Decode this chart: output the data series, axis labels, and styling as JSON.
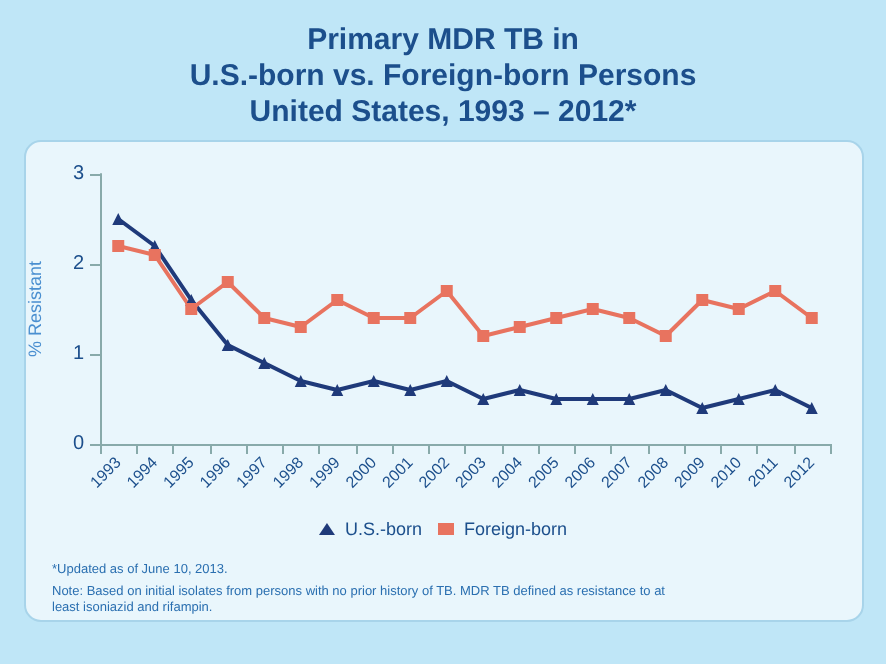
{
  "chart_data": {
    "type": "line",
    "title": "Primary MDR TB in\nU.S.-born vs. Foreign-born Persons\nUnited States, 1993 – 2012*",
    "ylabel": "% Resistant",
    "categories": [
      "1993",
      "1994",
      "1995",
      "1996",
      "1997",
      "1998",
      "1999",
      "2000",
      "2001",
      "2002",
      "2003",
      "2004",
      "2005",
      "2006",
      "2007",
      "2008",
      "2009",
      "2010",
      "2011",
      "2012"
    ],
    "series": [
      {
        "name": "U.S.-born",
        "color": "#1f3a7a",
        "marker": "triangle",
        "values": [
          2.5,
          2.2,
          1.6,
          1.1,
          0.9,
          0.7,
          0.6,
          0.7,
          0.6,
          0.7,
          0.5,
          0.6,
          0.5,
          0.5,
          0.5,
          0.6,
          0.4,
          0.5,
          0.6,
          0.4
        ]
      },
      {
        "name": "Foreign-born",
        "color": "#e8735f",
        "marker": "square",
        "values": [
          2.2,
          2.1,
          1.5,
          1.8,
          1.4,
          1.3,
          1.6,
          1.4,
          1.4,
          1.7,
          1.2,
          1.3,
          1.4,
          1.5,
          1.4,
          1.2,
          1.6,
          1.5,
          1.7,
          1.4
        ]
      }
    ],
    "ylim": [
      0,
      3
    ],
    "yticks": [
      0,
      1,
      2,
      3
    ],
    "grid": false,
    "legend": "bottom",
    "line_style": "solid",
    "annotations": [
      "*Updated as of June 10, 2013.",
      "Note: Based on initial isolates from persons with no prior history of TB. MDR TB defined as resistance to at least isoniazid and rifampin."
    ]
  }
}
